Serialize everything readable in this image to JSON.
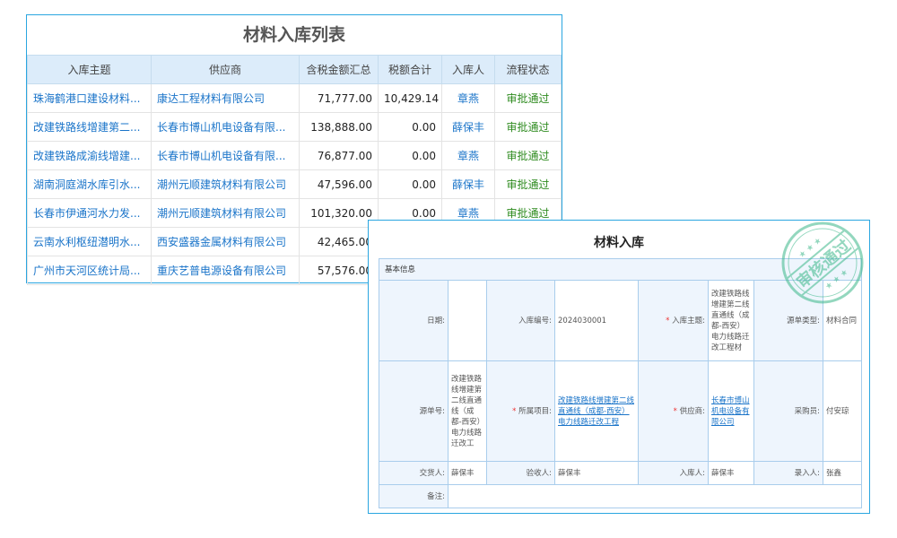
{
  "list": {
    "title": "材料入库列表",
    "headers": [
      "入库主题",
      "供应商",
      "含税金额汇总",
      "税额合计",
      "入库人",
      "流程状态"
    ],
    "rows": [
      [
        "珠海鹤港口建设材料...",
        "康达工程材料有限公司",
        "71,777.00",
        "10,429.14",
        "章燕",
        "审批通过"
      ],
      [
        "改建铁路线增建第二...",
        "长春市博山机电设备有限...",
        "138,888.00",
        "0.00",
        "薛保丰",
        "审批通过"
      ],
      [
        "改建铁路成渝线增建...",
        "长春市博山机电设备有限...",
        "76,877.00",
        "0.00",
        "章燕",
        "审批通过"
      ],
      [
        "湖南洞庭湖水库引水...",
        "潮州元顺建筑材料有限公司",
        "47,596.00",
        "0.00",
        "薛保丰",
        "审批通过"
      ],
      [
        "长春市伊通河水力发...",
        "潮州元顺建筑材料有限公司",
        "101,320.00",
        "0.00",
        "章燕",
        "审批通过"
      ],
      [
        "云南水利枢纽潜明水...",
        "西安盛器金属材料有限公司",
        "42,465.00",
        "",
        "",
        ""
      ],
      [
        "广州市天河区统计局...",
        "重庆艺普电源设备有限公司",
        "57,576.00",
        "",
        "",
        ""
      ]
    ]
  },
  "detail": {
    "title": "材料入库",
    "section": "基本信息",
    "date_label": "日期:",
    "date_value": "",
    "code_label": "入库编号:",
    "code_value": "2024030001",
    "subject_label": "入库主题:",
    "subject_value": "改建铁路线增建第二线直通线（成都-西安）电力线路迁改工程材",
    "source_type_label": "源单类型:",
    "source_type_value": "材料合同",
    "source_no_label": "源单号:",
    "source_no_value": "改建铁路线增建第二线直通线（成都-西安）电力线路迁改工",
    "project_label": "所属项目:",
    "project_value": "改建铁路线增建第二线直通线（成都-西安）电力线路迁改工程",
    "supplier_label": "供应商:",
    "supplier_value": "长春市博山机电设备有限公司",
    "buyer_label": "采购员:",
    "buyer_value": "付安琼",
    "deliverer_label": "交货人:",
    "deliverer_value": "薛保丰",
    "receiver_label": "验收人:",
    "receiver_value": "薛保丰",
    "stocker_label": "入库人:",
    "stocker_value": "薛保丰",
    "entry_label": "录入人:",
    "entry_value": "张鑫",
    "remark_label": "备注:",
    "remark_value": "",
    "stamp_text": "审核通过",
    "stamp_color": "#3cb88a"
  }
}
